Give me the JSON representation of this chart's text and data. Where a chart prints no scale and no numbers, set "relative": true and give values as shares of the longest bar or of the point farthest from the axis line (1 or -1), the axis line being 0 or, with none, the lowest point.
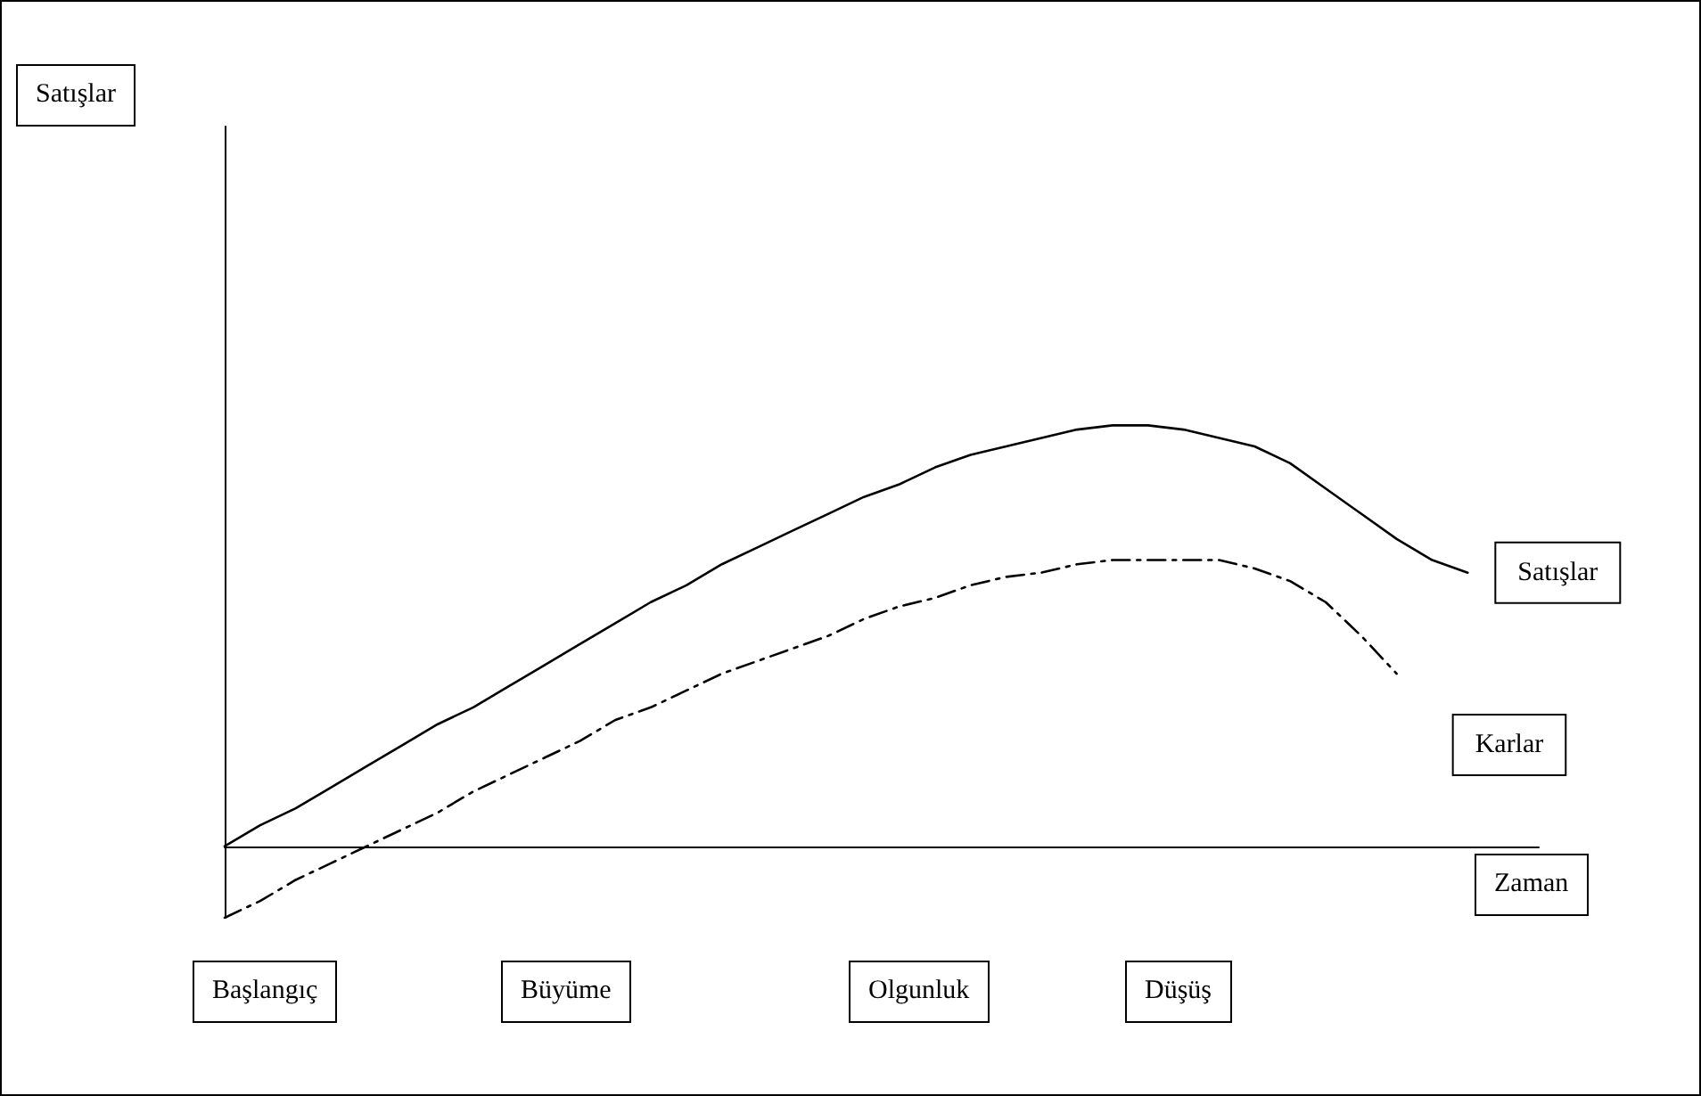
{
  "chart_data": {
    "type": "line",
    "relative": true,
    "xlabel": "Zaman",
    "categories": [
      null,
      null,
      null,
      null,
      null,
      null,
      null,
      null,
      null,
      null,
      null,
      null,
      null,
      null,
      null,
      null,
      null,
      null,
      null,
      null,
      null,
      null,
      null,
      null,
      null,
      null,
      null,
      null,
      null,
      null,
      null,
      null,
      null,
      null,
      null,
      null,
      null,
      null
    ],
    "series": [
      {
        "name": "Satışlar",
        "color": "#000000",
        "line_style": "solid",
        "values": [
          0,
          0.05,
          0.09,
          0.14,
          0.19,
          0.24,
          0.29,
          0.33,
          0.38,
          0.43,
          0.48,
          0.53,
          0.58,
          0.62,
          0.67,
          0.71,
          0.75,
          0.79,
          0.83,
          0.86,
          0.9,
          0.93,
          0.95,
          0.97,
          0.99,
          1,
          1,
          0.99,
          0.97,
          0.95,
          0.91,
          0.85,
          0.79,
          0.73,
          0.68,
          0.65,
          null,
          null
        ]
      },
      {
        "name": "Karlar",
        "color": "#000000",
        "line_style": "dashed",
        "values": [
          -0.17,
          -0.13,
          -0.08,
          -0.04,
          0,
          0.04,
          0.08,
          0.13,
          0.17,
          0.21,
          0.25,
          0.3,
          0.33,
          0.37,
          0.41,
          0.44,
          0.47,
          0.5,
          0.54,
          0.57,
          0.59,
          0.62,
          0.64,
          0.65,
          0.67,
          0.68,
          0.68,
          0.68,
          0.68,
          0.66,
          0.63,
          0.58,
          0.5,
          0.41,
          null,
          null,
          null,
          null
        ]
      }
    ],
    "annotations": [
      "Satışlar",
      "Başlangıç",
      "Büyüme",
      "Olgunluk",
      "Düşüş"
    ],
    "marker": "none",
    "legend": false,
    "grid": false
  }
}
